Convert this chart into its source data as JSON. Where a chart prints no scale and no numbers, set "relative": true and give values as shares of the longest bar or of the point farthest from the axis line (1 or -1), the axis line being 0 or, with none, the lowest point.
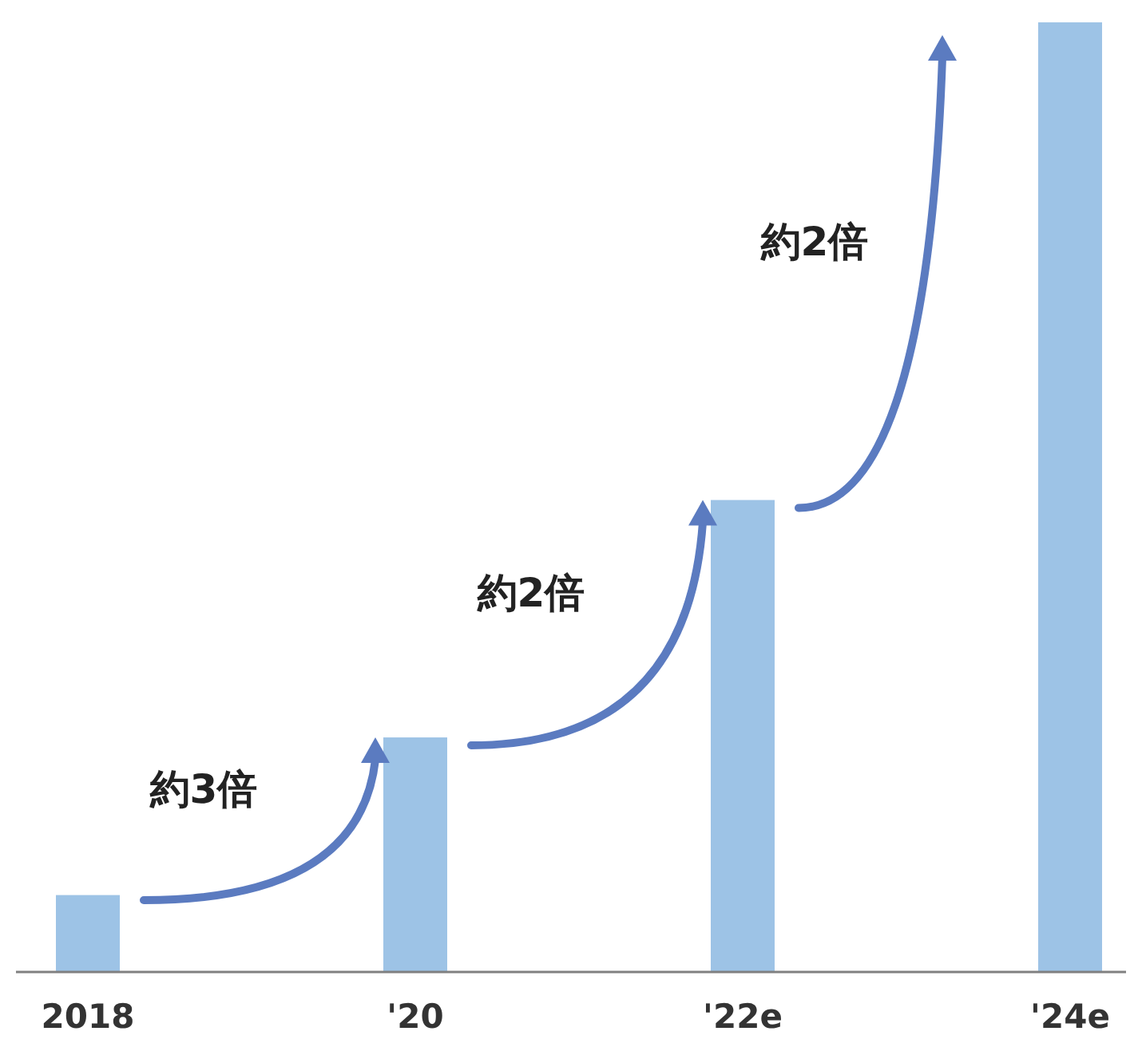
{
  "chart_data": {
    "type": "bar",
    "relative": true,
    "categories": [
      "2018",
      "'20",
      "'22e",
      "'24e"
    ],
    "values": [
      0.081,
      0.247,
      0.497,
      1
    ],
    "color": "#9dc3e6",
    "annotations": [
      "約3倍",
      "約2倍",
      "約2倍"
    ]
  }
}
